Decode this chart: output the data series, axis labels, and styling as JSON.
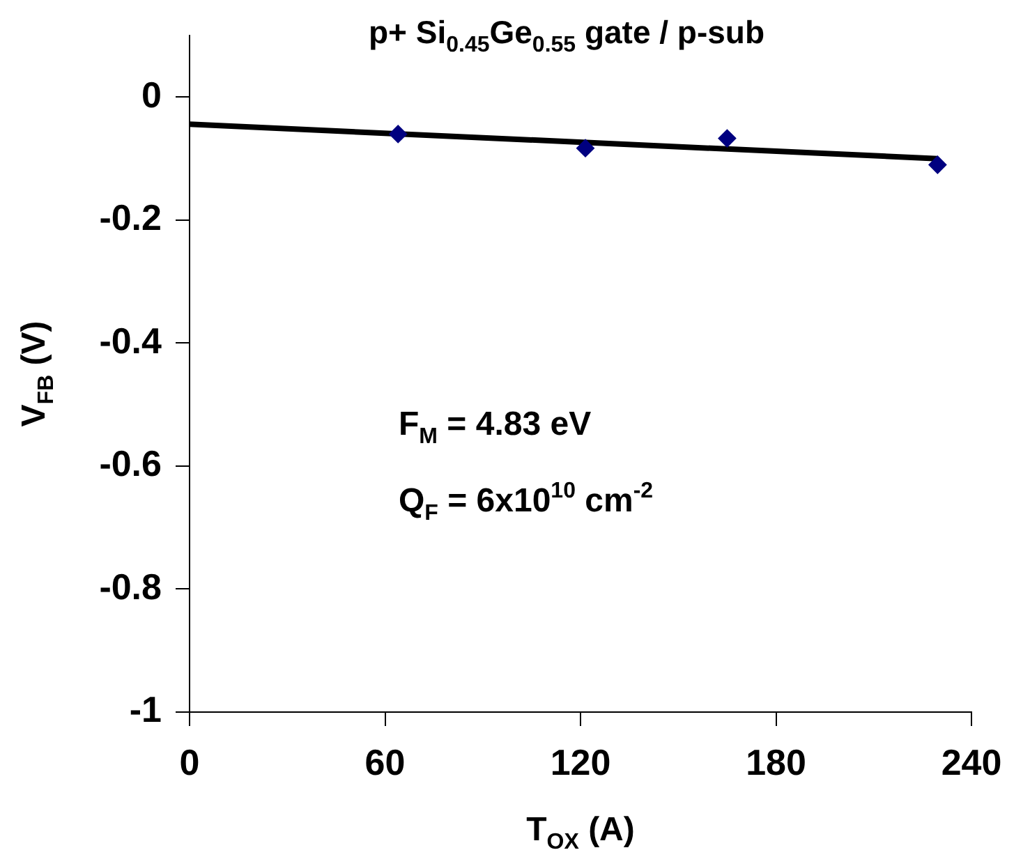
{
  "chart_data": {
    "type": "scatter",
    "title": "p+ Si$_{0.45}$Ge$_{0.55}$ gate / p-sub",
    "xlabel": "T$_{OX}$ (A)",
    "ylabel": "V$_{FB}$ (V)",
    "xlim": [
      0,
      240
    ],
    "xticks": [
      0,
      60,
      120,
      180,
      240
    ],
    "ylim": [
      -1,
      0.1
    ],
    "yticks": [
      0,
      -0.2,
      -0.4,
      -0.6,
      -0.8,
      -1
    ],
    "grid": false,
    "legend": false,
    "series": [
      {
        "color": "#000080",
        "marker": "diamond",
        "x": [
          64,
          121.5,
          165,
          229.6
        ],
        "values": [
          -0.06,
          -0.083,
          -0.067,
          -0.11
        ]
      },
      {
        "type": "line",
        "color": "#000000",
        "marker": "none",
        "line_style": "solid",
        "x": [
          0,
          229.6
        ],
        "values": [
          -0.044,
          -0.1
        ]
      }
    ],
    "annotations": [
      "F$_{M}$ = 4.83 eV",
      "Q$_{F}$ = 6x10$^{10}$ cm$^{-2}$"
    ]
  }
}
